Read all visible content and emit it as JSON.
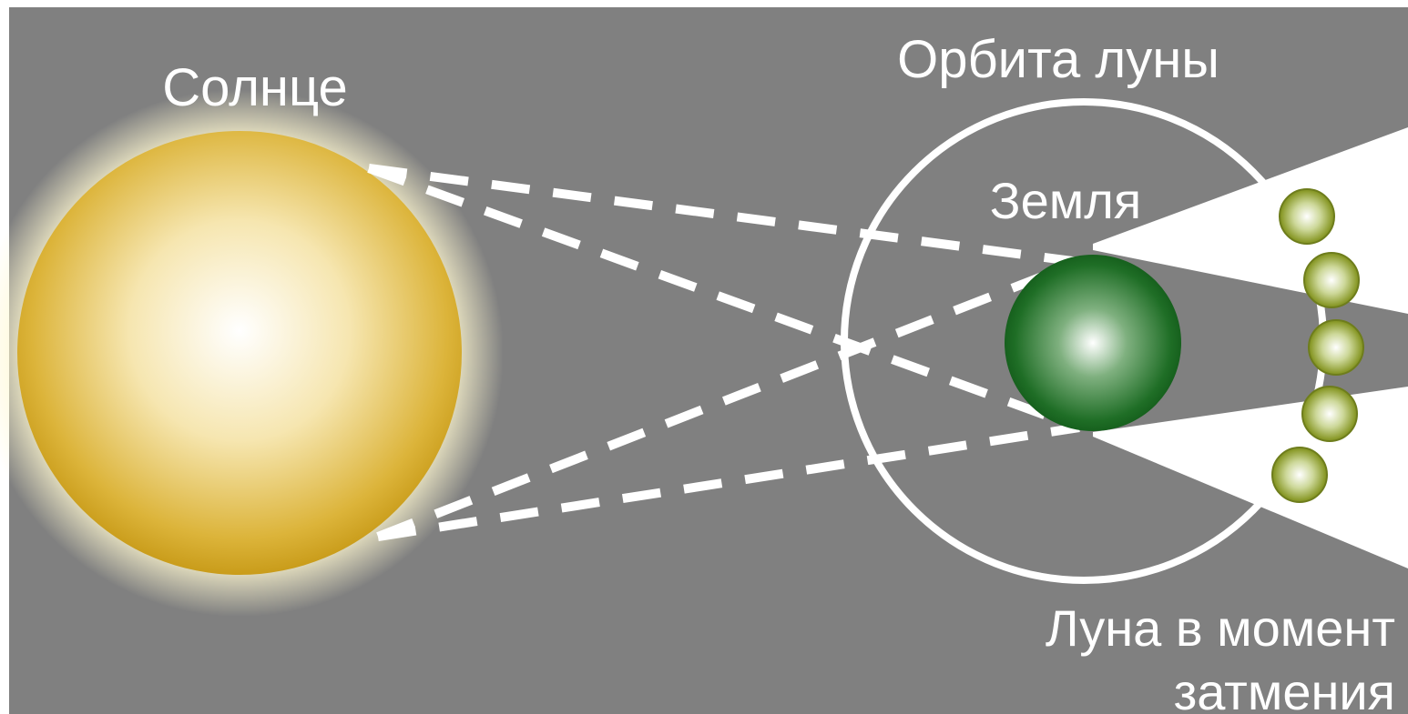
{
  "labels": {
    "sun": "Солнце",
    "moon_orbit": "Орбита луны",
    "earth": "Земля",
    "moon_at_eclipse": [
      "Луна в момент",
      "затмения"
    ]
  }
}
